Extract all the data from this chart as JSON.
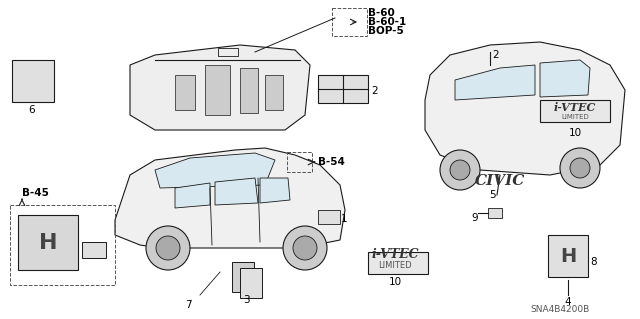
{
  "bg_color": "#ffffff",
  "line_color": "#1a1a1a",
  "dashed_color": "#555555",
  "text_color": "#000000",
  "gray_text_color": "#555555",
  "fig_width": 6.4,
  "fig_height": 3.19,
  "title": "SNA4B4200B",
  "parts": {
    "labels": [
      "1",
      "2",
      "3",
      "4",
      "5",
      "6",
      "7",
      "8",
      "9",
      "10"
    ],
    "b_labels": [
      "B-60",
      "B-60-1",
      "BOP-5",
      "B-54",
      "B-45"
    ]
  },
  "annotation_color": "#000000"
}
